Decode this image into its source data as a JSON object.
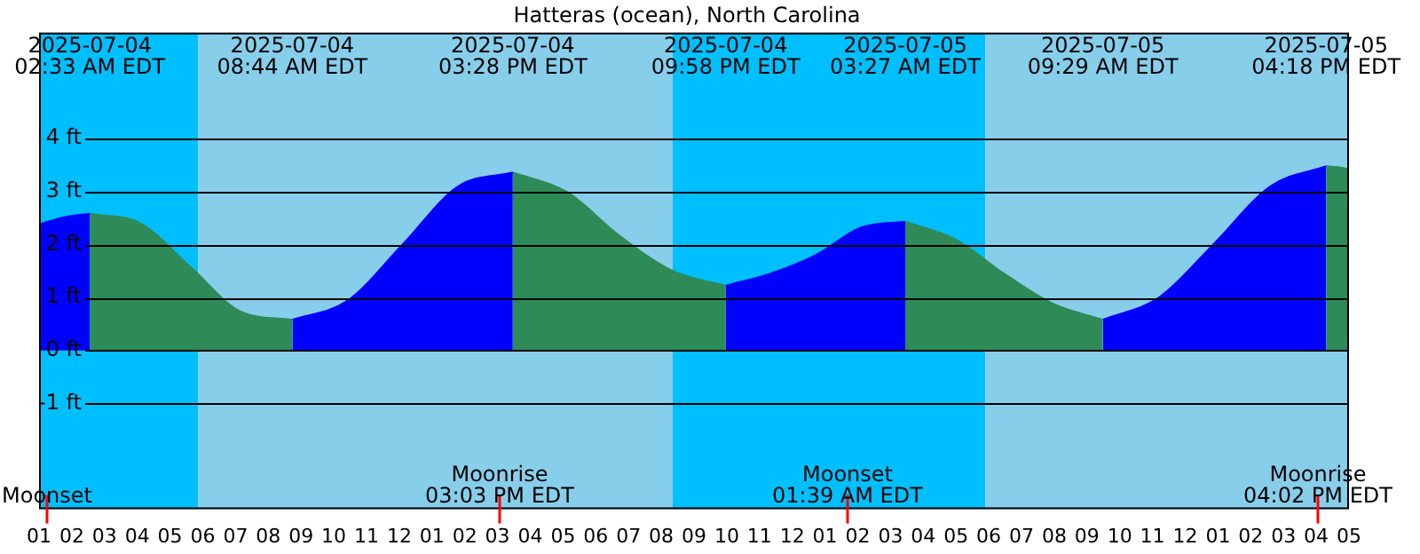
{
  "chart_data": {
    "type": "area",
    "title": "Hatteras (ocean), North Carolina",
    "series": [
      {
        "color": "#0000ff",
        "x": [
          "2025-07-04T01:00",
          "2025-07-04T01:48",
          "2025-07-04T02:33"
        ],
        "values": [
          2.38,
          2.52,
          2.58
        ]
      },
      {
        "color": "#2e8b57",
        "x": [
          "2025-07-04T02:33",
          "2025-07-04T04:06",
          "2025-07-04T05:38",
          "2025-07-04T07:12",
          "2025-07-04T08:44"
        ],
        "values": [
          2.58,
          2.4,
          1.57,
          0.72,
          0.58
        ]
      },
      {
        "color": "#0000ff",
        "x": [
          "2025-07-04T08:44",
          "2025-07-04T10:24",
          "2025-07-04T12:06",
          "2025-07-04T13:48",
          "2025-07-04T15:28"
        ],
        "values": [
          0.58,
          0.93,
          2.0,
          3.1,
          3.36
        ]
      },
      {
        "color": "#2e8b57",
        "x": [
          "2025-07-04T15:28",
          "2025-07-04T17:06",
          "2025-07-04T18:43",
          "2025-07-04T20:21",
          "2025-07-04T21:58"
        ],
        "values": [
          3.36,
          3.0,
          2.17,
          1.5,
          1.22
        ]
      },
      {
        "color": "#0000ff",
        "x": [
          "2025-07-04T21:58",
          "2025-07-04T23:20",
          "2025-07-05T00:43",
          "2025-07-05T02:06",
          "2025-07-05T03:27"
        ],
        "values": [
          1.22,
          1.45,
          1.8,
          2.32,
          2.43
        ]
      },
      {
        "color": "#2e8b57",
        "x": [
          "2025-07-05T03:27",
          "2025-07-05T05:00",
          "2025-07-05T06:28",
          "2025-07-05T08:00",
          "2025-07-05T09:29"
        ],
        "values": [
          2.43,
          2.09,
          1.45,
          0.87,
          0.58
        ]
      },
      {
        "color": "#0000ff",
        "x": [
          "2025-07-05T09:29",
          "2025-07-05T11:12",
          "2025-07-05T12:54",
          "2025-07-05T14:36",
          "2025-07-05T16:18"
        ],
        "values": [
          0.58,
          1.0,
          2.03,
          3.1,
          3.48
        ]
      },
      {
        "color": "#2e8b57",
        "x": [
          "2025-07-05T16:18",
          "2025-07-05T16:39",
          "2025-07-05T17:00"
        ],
        "values": [
          3.48,
          3.46,
          3.42
        ]
      }
    ],
    "xlim": [
      "2025-07-04T01:00",
      "2025-07-05T17:00"
    ],
    "xticks": [
      {
        "value": "2025-07-04T01:00",
        "label": "01"
      },
      {
        "value": "2025-07-04T02:00",
        "label": "02"
      },
      {
        "value": "2025-07-04T03:00",
        "label": "03"
      },
      {
        "value": "2025-07-04T04:00",
        "label": "04"
      },
      {
        "value": "2025-07-04T05:00",
        "label": "05"
      },
      {
        "value": "2025-07-04T06:00",
        "label": "06"
      },
      {
        "value": "2025-07-04T07:00",
        "label": "07"
      },
      {
        "value": "2025-07-04T08:00",
        "label": "08"
      },
      {
        "value": "2025-07-04T09:00",
        "label": "09"
      },
      {
        "value": "2025-07-04T10:00",
        "label": "10"
      },
      {
        "value": "2025-07-04T11:00",
        "label": "11"
      },
      {
        "value": "2025-07-04T12:00",
        "label": "12"
      },
      {
        "value": "2025-07-04T13:00",
        "label": "01"
      },
      {
        "value": "2025-07-04T14:00",
        "label": "02"
      },
      {
        "value": "2025-07-04T15:00",
        "label": "03"
      },
      {
        "value": "2025-07-04T16:00",
        "label": "04"
      },
      {
        "value": "2025-07-04T17:00",
        "label": "05"
      },
      {
        "value": "2025-07-04T18:00",
        "label": "06"
      },
      {
        "value": "2025-07-04T19:00",
        "label": "07"
      },
      {
        "value": "2025-07-04T20:00",
        "label": "08"
      },
      {
        "value": "2025-07-04T21:00",
        "label": "09"
      },
      {
        "value": "2025-07-04T22:00",
        "label": "10"
      },
      {
        "value": "2025-07-04T23:00",
        "label": "11"
      },
      {
        "value": "2025-07-05T00:00",
        "label": "12"
      },
      {
        "value": "2025-07-05T01:00",
        "label": "01"
      },
      {
        "value": "2025-07-05T02:00",
        "label": "02"
      },
      {
        "value": "2025-07-05T03:00",
        "label": "03"
      },
      {
        "value": "2025-07-05T04:00",
        "label": "04"
      },
      {
        "value": "2025-07-05T05:00",
        "label": "05"
      },
      {
        "value": "2025-07-05T06:00",
        "label": "06"
      },
      {
        "value": "2025-07-05T07:00",
        "label": "07"
      },
      {
        "value": "2025-07-05T08:00",
        "label": "08"
      },
      {
        "value": "2025-07-05T09:00",
        "label": "09"
      },
      {
        "value": "2025-07-05T10:00",
        "label": "10"
      },
      {
        "value": "2025-07-05T11:00",
        "label": "11"
      },
      {
        "value": "2025-07-05T12:00",
        "label": "12"
      },
      {
        "value": "2025-07-05T13:00",
        "label": "01"
      },
      {
        "value": "2025-07-05T14:00",
        "label": "02"
      },
      {
        "value": "2025-07-05T15:00",
        "label": "03"
      },
      {
        "value": "2025-07-05T16:00",
        "label": "04"
      },
      {
        "value": "2025-07-05T17:00",
        "label": "05"
      }
    ],
    "ylim": [
      -3,
      6
    ],
    "yticks": [
      {
        "value": -1,
        "label": "-1 ft"
      },
      {
        "value": 0,
        "label": "0 ft"
      },
      {
        "value": 1,
        "label": "1 ft"
      },
      {
        "value": 2,
        "label": "2 ft"
      },
      {
        "value": 3,
        "label": "3 ft"
      },
      {
        "value": 4,
        "label": "4 ft"
      }
    ],
    "grid": "y",
    "legend": false,
    "marker": "none",
    "bands": [
      {
        "axis": "x",
        "from": "2025-07-04T01:00",
        "to": "2025-07-04T05:51",
        "color": "#00bfff"
      },
      {
        "axis": "x",
        "from": "2025-07-04T05:51",
        "to": "2025-07-04T20:21",
        "color": "#87ceeb"
      },
      {
        "axis": "x",
        "from": "2025-07-04T20:21",
        "to": "2025-07-05T05:54",
        "color": "#00bfff"
      },
      {
        "axis": "x",
        "from": "2025-07-05T05:54",
        "to": "2025-07-05T17:00",
        "color": "#87ceeb"
      }
    ],
    "ref_lines": [
      {
        "axis": "x",
        "value": "2025-07-04T01:12",
        "label": "Moonset",
        "color": "#ff0000"
      },
      {
        "axis": "x",
        "value": "2025-07-04T15:03",
        "label": "Moonrise\n03:03 PM EDT",
        "color": "#ff0000"
      },
      {
        "axis": "x",
        "value": "2025-07-05T01:39",
        "label": "Moonset\n01:39 AM EDT",
        "color": "#ff0000"
      },
      {
        "axis": "x",
        "value": "2025-07-05T16:02",
        "label": "Moonrise\n04:02 PM EDT",
        "color": "#ff0000"
      }
    ],
    "x2lim": [
      "2025-07-04T01:00",
      "2025-07-05T17:00"
    ],
    "x2ticks": [
      {
        "value": "2025-07-04T02:33",
        "label": "2025-07-04\n02:33 AM EDT"
      },
      {
        "value": "2025-07-04T08:44",
        "label": "2025-07-04\n08:44 AM EDT"
      },
      {
        "value": "2025-07-04T15:28",
        "label": "2025-07-04\n03:28 PM EDT"
      },
      {
        "value": "2025-07-04T21:58",
        "label": "2025-07-04\n09:58 PM EDT"
      },
      {
        "value": "2025-07-05T03:27",
        "label": "2025-07-05\n03:27 AM EDT"
      },
      {
        "value": "2025-07-05T09:29",
        "label": "2025-07-05\n09:29 AM EDT"
      },
      {
        "value": "2025-07-05T16:18",
        "label": "2025-07-05\n04:18 PM EDT"
      }
    ]
  }
}
